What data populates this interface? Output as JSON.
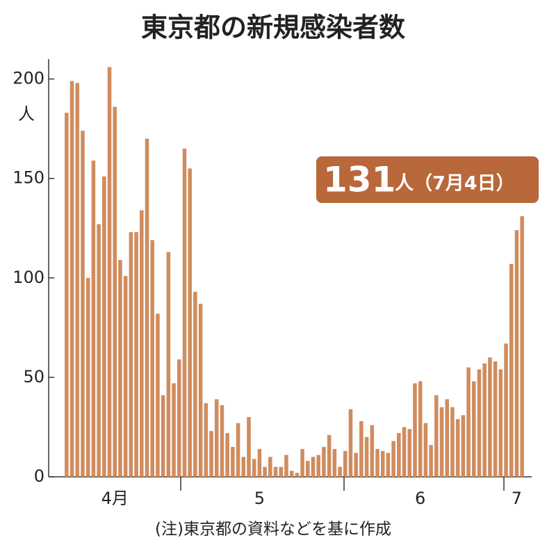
{
  "chart_data": {
    "type": "bar",
    "title": "東京都の新規感染者数",
    "y_unit": "人",
    "note": "(注)東京都の資料などを基に作成",
    "annotation": "人（7月4日）",
    "categories": [
      null,
      null,
      null,
      null,
      null,
      null,
      null,
      null,
      null,
      "4月",
      null,
      null,
      null,
      null,
      null,
      null,
      null,
      null,
      null,
      null,
      null,
      null,
      null,
      null,
      null,
      null,
      null,
      null,
      null,
      null,
      null,
      null,
      null,
      null,
      null,
      null,
      "5",
      null,
      null,
      null,
      null,
      null,
      null,
      null,
      null,
      null,
      null,
      null,
      null,
      null,
      null,
      null,
      null,
      null,
      null,
      null,
      null,
      null,
      null,
      null,
      null,
      null,
      null,
      null,
      null,
      null,
      "6",
      null,
      null,
      null,
      null,
      null,
      null,
      null,
      null,
      null,
      null,
      null,
      null,
      null,
      null,
      null,
      null,
      null,
      "7",
      null
    ],
    "values": [
      183,
      199,
      198,
      174,
      100,
      159,
      127,
      151,
      206,
      186,
      109,
      101,
      123,
      123,
      134,
      170,
      119,
      82,
      41,
      113,
      47,
      59,
      165,
      155,
      93,
      87,
      37,
      23,
      39,
      36,
      22,
      15,
      27,
      10,
      30,
      9,
      14,
      5,
      10,
      5,
      5,
      11,
      3,
      2,
      14,
      8,
      10,
      11,
      15,
      21,
      14,
      5,
      13,
      34,
      12,
      28,
      20,
      26,
      14,
      13,
      12,
      18,
      22,
      25,
      24,
      47,
      48,
      27,
      16,
      41,
      35,
      39,
      35,
      29,
      31,
      55,
      48,
      54,
      57,
      60,
      58,
      54,
      67,
      107,
      124,
      131
    ],
    "color": "#d08c5e",
    "ylim": [
      0,
      210
    ],
    "yticks": [
      0,
      50,
      100,
      150,
      200
    ],
    "grid": false
  }
}
